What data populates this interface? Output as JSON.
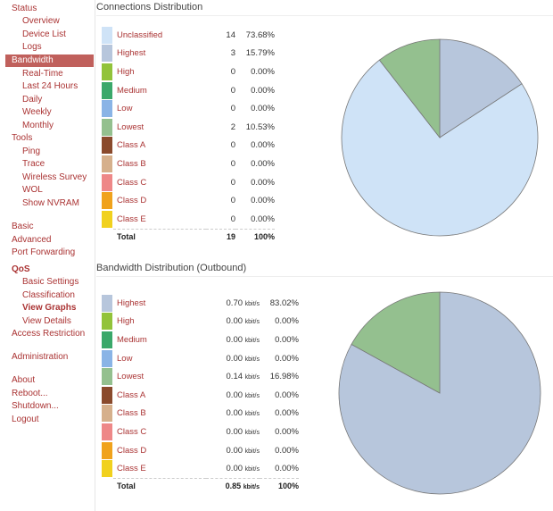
{
  "sidebar": {
    "items": [
      {
        "label": "Status",
        "level": 0
      },
      {
        "label": "Overview",
        "level": 1
      },
      {
        "label": "Device List",
        "level": 1
      },
      {
        "label": "Logs",
        "level": 1
      },
      {
        "label": "Bandwidth",
        "level": 0,
        "active": true
      },
      {
        "label": "Real-Time",
        "level": 1
      },
      {
        "label": "Last 24 Hours",
        "level": 1
      },
      {
        "label": "Daily",
        "level": 1
      },
      {
        "label": "Weekly",
        "level": 1
      },
      {
        "label": "Monthly",
        "level": 1
      },
      {
        "label": "Tools",
        "level": 0
      },
      {
        "label": "Ping",
        "level": 1
      },
      {
        "label": "Trace",
        "level": 1
      },
      {
        "label": "Wireless Survey",
        "level": 1
      },
      {
        "label": "WOL",
        "level": 1
      },
      {
        "label": "Show NVRAM",
        "level": 1
      },
      {
        "label": "Basic",
        "level": 0
      },
      {
        "label": "Advanced",
        "level": 0
      },
      {
        "label": "Port Forwarding",
        "level": 0
      },
      {
        "label": "QoS",
        "level": 0,
        "bold": true
      },
      {
        "label": "Basic Settings",
        "level": 1
      },
      {
        "label": "Classification",
        "level": 1
      },
      {
        "label": "View Graphs",
        "level": 1,
        "bold": true
      },
      {
        "label": "View Details",
        "level": 1
      },
      {
        "label": "Access Restriction",
        "level": 0
      },
      {
        "label": "Administration",
        "level": 0
      },
      {
        "label": "About",
        "level": 0
      },
      {
        "label": "Reboot...",
        "level": 0
      },
      {
        "label": "Shutdown...",
        "level": 0
      },
      {
        "label": "Logout",
        "level": 0
      }
    ]
  },
  "connections": {
    "title": "Connections Distribution",
    "rows": [
      {
        "label": "Unclassified",
        "count": "14",
        "percent": "73.68%",
        "color": "#cfe3f7"
      },
      {
        "label": "Highest",
        "count": "3",
        "percent": "15.79%",
        "color": "#b7c6dc"
      },
      {
        "label": "High",
        "count": "0",
        "percent": "0.00%",
        "color": "#92c33a"
      },
      {
        "label": "Medium",
        "count": "0",
        "percent": "0.00%",
        "color": "#3aa86a"
      },
      {
        "label": "Low",
        "count": "0",
        "percent": "0.00%",
        "color": "#8ab4e6"
      },
      {
        "label": "Lowest",
        "count": "2",
        "percent": "10.53%",
        "color": "#94c08f"
      },
      {
        "label": "Class A",
        "count": "0",
        "percent": "0.00%",
        "color": "#8a4a2c"
      },
      {
        "label": "Class B",
        "count": "0",
        "percent": "0.00%",
        "color": "#d6b08c"
      },
      {
        "label": "Class C",
        "count": "0",
        "percent": "0.00%",
        "color": "#ee8888"
      },
      {
        "label": "Class D",
        "count": "0",
        "percent": "0.00%",
        "color": "#f0a21c"
      },
      {
        "label": "Class E",
        "count": "0",
        "percent": "0.00%",
        "color": "#f1d11e"
      }
    ],
    "total": {
      "label": "Total",
      "count": "19",
      "percent": "100%"
    }
  },
  "bandwidth": {
    "title": "Bandwidth Distribution (Outbound)",
    "unit": "kbit/s",
    "rows": [
      {
        "label": "Highest",
        "rate": "0.70",
        "percent": "83.02%",
        "color": "#b7c6dc"
      },
      {
        "label": "High",
        "rate": "0.00",
        "percent": "0.00%",
        "color": "#92c33a"
      },
      {
        "label": "Medium",
        "rate": "0.00",
        "percent": "0.00%",
        "color": "#3aa86a"
      },
      {
        "label": "Low",
        "rate": "0.00",
        "percent": "0.00%",
        "color": "#8ab4e6"
      },
      {
        "label": "Lowest",
        "rate": "0.14",
        "percent": "16.98%",
        "color": "#94c08f"
      },
      {
        "label": "Class A",
        "rate": "0.00",
        "percent": "0.00%",
        "color": "#8a4a2c"
      },
      {
        "label": "Class B",
        "rate": "0.00",
        "percent": "0.00%",
        "color": "#d6b08c"
      },
      {
        "label": "Class C",
        "rate": "0.00",
        "percent": "0.00%",
        "color": "#ee8888"
      },
      {
        "label": "Class D",
        "rate": "0.00",
        "percent": "0.00%",
        "color": "#f0a21c"
      },
      {
        "label": "Class E",
        "rate": "0.00",
        "percent": "0.00%",
        "color": "#f1d11e"
      }
    ],
    "total": {
      "label": "Total",
      "rate": "0.85",
      "percent": "100%"
    }
  },
  "chart_data": [
    {
      "type": "pie",
      "title": "Connections Distribution",
      "categories": [
        "Unclassified",
        "Highest",
        "Lowest"
      ],
      "values": [
        73.68,
        15.79,
        10.53
      ],
      "colors": [
        "#cfe3f7",
        "#b7c6dc",
        "#94c08f"
      ],
      "order": [
        "Highest",
        "Unclassified",
        "Lowest"
      ]
    },
    {
      "type": "pie",
      "title": "Bandwidth Distribution (Outbound)",
      "categories": [
        "Highest",
        "Lowest"
      ],
      "values": [
        83.02,
        16.98
      ],
      "colors": [
        "#b7c6dc",
        "#94c08f"
      ],
      "order": [
        "Highest",
        "Lowest"
      ]
    }
  ]
}
